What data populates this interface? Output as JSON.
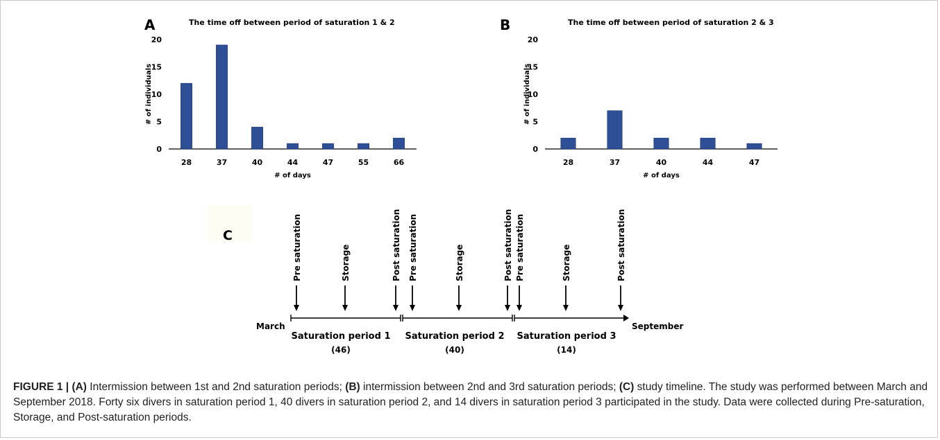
{
  "chart_data": [
    {
      "type": "bar",
      "panel": "A",
      "title": "The time off between period of saturation 1 & 2",
      "xlabel": "# of days",
      "ylabel": "# of individuals",
      "categories": [
        "28",
        "37",
        "40",
        "44",
        "47",
        "55",
        "66"
      ],
      "values": [
        12,
        19,
        4,
        1,
        1,
        1,
        2
      ],
      "yticks": [
        "0",
        "5",
        "10",
        "15",
        "20"
      ],
      "ylim": [
        0,
        20
      ],
      "grid": false,
      "bar_color": "#2e4f96"
    },
    {
      "type": "bar",
      "panel": "B",
      "title": "The time off between period of saturation 2 & 3",
      "xlabel": "# of days",
      "ylabel": "# of individuals",
      "categories": [
        "28",
        "37",
        "40",
        "44",
        "47"
      ],
      "values": [
        2,
        7,
        2,
        2,
        1
      ],
      "yticks": [
        "0",
        "5",
        "10",
        "15",
        "20"
      ],
      "ylim": [
        0,
        20
      ],
      "grid": false,
      "bar_color": "#2e4f96"
    }
  ],
  "timeline": {
    "panel": "C",
    "start_label": "March",
    "end_label": "September",
    "periods": [
      {
        "name": "Saturation period 1",
        "count": "(46)",
        "events": [
          "Pre saturation",
          "Storage",
          "Post saturation"
        ]
      },
      {
        "name": "Saturation period 2",
        "count": "(40)",
        "events": [
          "Pre saturation",
          "Storage",
          "Post saturation"
        ]
      },
      {
        "name": "Saturation period 3",
        "count": "(14)",
        "events": [
          "Pre saturation",
          "Storage",
          "Post saturation"
        ]
      }
    ]
  },
  "caption": {
    "label": "FIGURE 1",
    "sep": " | ",
    "a": "(A)",
    "a_text": " Intermission between 1st and 2nd saturation periods; ",
    "b": "(B)",
    "b_text": " intermission between 2nd and 3rd saturation periods; ",
    "c": "(C)",
    "c_text": " study timeline. The study was performed between March and September 2018. Forty six divers in saturation period 1, 40 divers in saturation period 2, and 14 divers in saturation period 3 participated in the study. Data were collected during Pre-saturation, Storage, and Post-saturation periods."
  },
  "colors": {
    "bar": "#2e4f96",
    "axis": "#000000"
  }
}
